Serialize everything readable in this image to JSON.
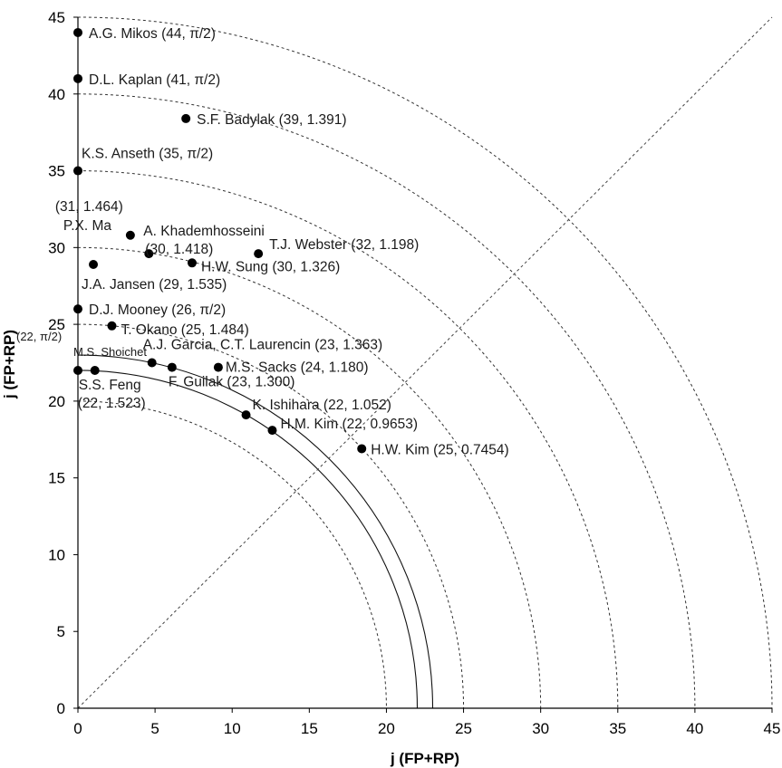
{
  "chart_data": {
    "type": "scatter",
    "title": "",
    "xlabel": "j (FP+RP)",
    "ylabel": "j (FP+RP)",
    "xlim": [
      0,
      45
    ],
    "ylim": [
      0,
      45
    ],
    "x_ticks": [
      "0",
      "5",
      "10",
      "15",
      "20",
      "25",
      "30",
      "35",
      "40",
      "45"
    ],
    "y_ticks": [
      "0",
      "5",
      "10",
      "15",
      "20",
      "25",
      "30",
      "35",
      "40",
      "45"
    ],
    "grid": false,
    "dashed_arcs": [
      20,
      25,
      30,
      35,
      40,
      45
    ],
    "solid_arcs": [
      22,
      23
    ],
    "diagonal": true,
    "points": [
      {
        "x": 0,
        "y": 44,
        "label": "A.G. Mikos (44, π/2)"
      },
      {
        "x": 0,
        "y": 41,
        "label": "D.L. Kaplan (41, π/2)"
      },
      {
        "x": 7.0,
        "y": 38.4,
        "label": "S.F. Badylak (39, 1.391)"
      },
      {
        "x": 0,
        "y": 35,
        "label": "K.S. Anseth (35, π/2)"
      },
      {
        "x": 3.4,
        "y": 30.8,
        "label": "P.X. Ma"
      },
      {
        "x": 4.6,
        "y": 29.6,
        "label": "A. Khademhosseini"
      },
      {
        "x": 11.7,
        "y": 29.6,
        "label": "T.J. Webster (32, 1.198)"
      },
      {
        "x": 7.4,
        "y": 29.0,
        "label": "H.W. Sung (30, 1.326)"
      },
      {
        "x": 1.0,
        "y": 28.9,
        "label": "J.A. Jansen (29, 1.535)"
      },
      {
        "x": 0,
        "y": 26,
        "label": "D.J. Mooney (26, π/2)"
      },
      {
        "x": 2.2,
        "y": 24.9,
        "label": "T. Okano (25, 1.484)"
      },
      {
        "x": 4.8,
        "y": 22.5,
        "label": "A.J. Garcia, C.T. Laurencin (23, 1.363)"
      },
      {
        "x": 6.1,
        "y": 22.2,
        "label": "F. Guilak (23, 1.300)"
      },
      {
        "x": 9.1,
        "y": 22.2,
        "label": "M.S. Sacks (24, 1.180)"
      },
      {
        "x": 0,
        "y": 22,
        "label": "M.S. Shoichet"
      },
      {
        "x": 1.1,
        "y": 22.0,
        "label": "S.S. Feng"
      },
      {
        "x": 10.9,
        "y": 19.1,
        "label": "K. Ishihara (22, 1.052)"
      },
      {
        "x": 12.6,
        "y": 18.1,
        "label": "H.M. Kim (22, 0.9653)"
      },
      {
        "x": 18.4,
        "y": 16.9,
        "label": "H.W. Kim (25, 0.7454)"
      }
    ],
    "annotations": [
      {
        "text": "(31, 1.464)",
        "near": "P.X. Ma"
      },
      {
        "text": "(30, 1.418)",
        "near": "A. Khademhosseini"
      },
      {
        "text": "(22, π/2)",
        "near": "M.S. Shoichet"
      },
      {
        "text": "(22, 1.523)",
        "near": "S.S. Feng"
      }
    ]
  }
}
